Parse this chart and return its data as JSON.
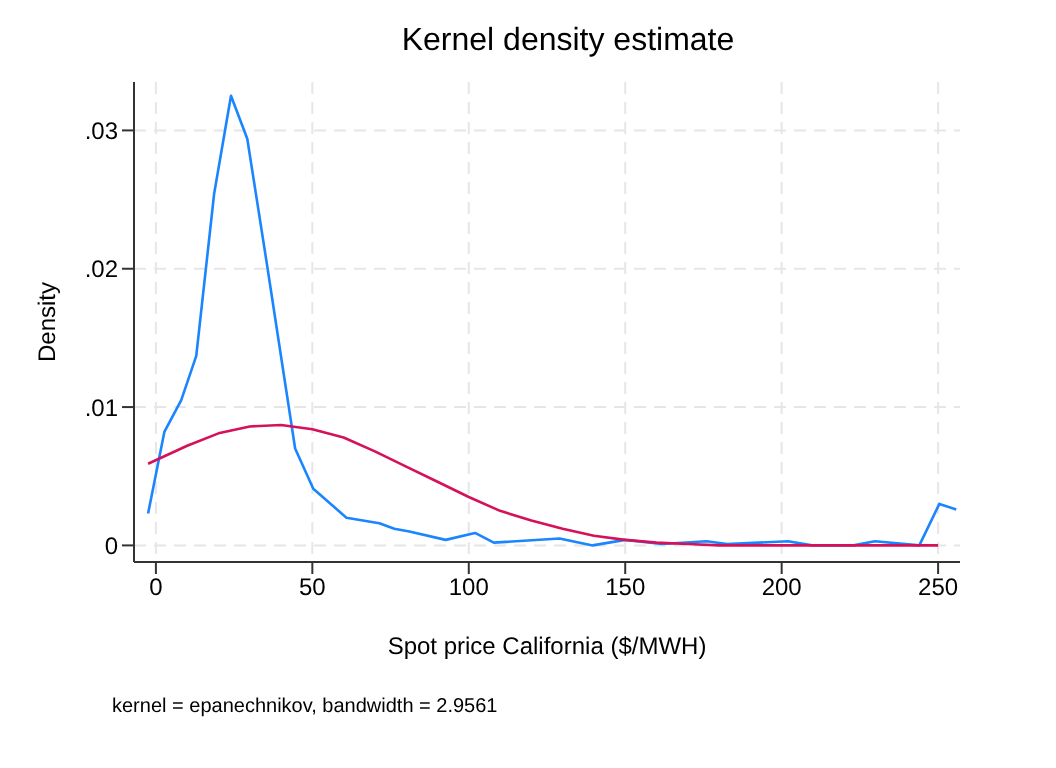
{
  "chart_data": {
    "type": "line",
    "title": "Kernel density estimate",
    "xlabel": "Spot price California ($/MWH)",
    "ylabel": "Density",
    "annotations": [
      "kernel = epanechnikov, bandwidth = 2.9561"
    ],
    "series": [
      {
        "color": "#1a85ff",
        "x": [
          -2.5,
          2.7,
          8.1,
          12.9,
          18.6,
          24,
          29.2,
          35.3,
          44.5,
          50.3,
          60.9,
          71.4,
          76.2,
          81,
          92.6,
          102,
          108,
          129,
          139.6,
          150,
          161.7,
          176,
          182.6,
          202,
          209.7,
          223,
          229.8,
          244,
          250.4,
          255.8
        ],
        "values": [
          0.0023,
          0.0082,
          0.0105,
          0.0137,
          0.0254,
          0.0325,
          0.0294,
          0.0206,
          0.007,
          0.0041,
          0.002,
          0.0016,
          0.0012,
          0.001,
          0.0004,
          0.0009,
          0.0002,
          0.0005,
          0,
          0.0004,
          0.0001,
          0.0003,
          0.0001,
          0.0003,
          0,
          0,
          0.0003,
          0,
          0.003,
          0.0026
        ]
      },
      {
        "color": "#d41159",
        "x": [
          -2.5,
          10,
          20,
          30,
          40,
          50,
          60,
          70,
          80,
          90,
          100,
          110,
          120,
          130,
          140,
          150,
          160,
          170,
          180,
          200,
          220,
          250
        ],
        "values": [
          0.0059,
          0.0072,
          0.0081,
          0.0086,
          0.0087,
          0.0084,
          0.0078,
          0.0068,
          0.0057,
          0.0046,
          0.0035,
          0.0025,
          0.0018,
          0.0012,
          0.0007,
          0.0004,
          0.0002,
          0.0001,
          0,
          0,
          0,
          0
        ]
      }
    ],
    "xlim": [
      -7,
      257
    ],
    "xticks": [
      0,
      50,
      100,
      150,
      200,
      250
    ],
    "ylim": [
      -0.0012,
      0.0335
    ],
    "yticks": [
      0,
      {
        "value": 0.01,
        "label": ".01"
      },
      {
        "value": 0.02,
        "label": ".02"
      },
      {
        "value": 0.03,
        "label": ".03"
      }
    ],
    "grid": true,
    "marker": "none",
    "line_style": "solid"
  }
}
